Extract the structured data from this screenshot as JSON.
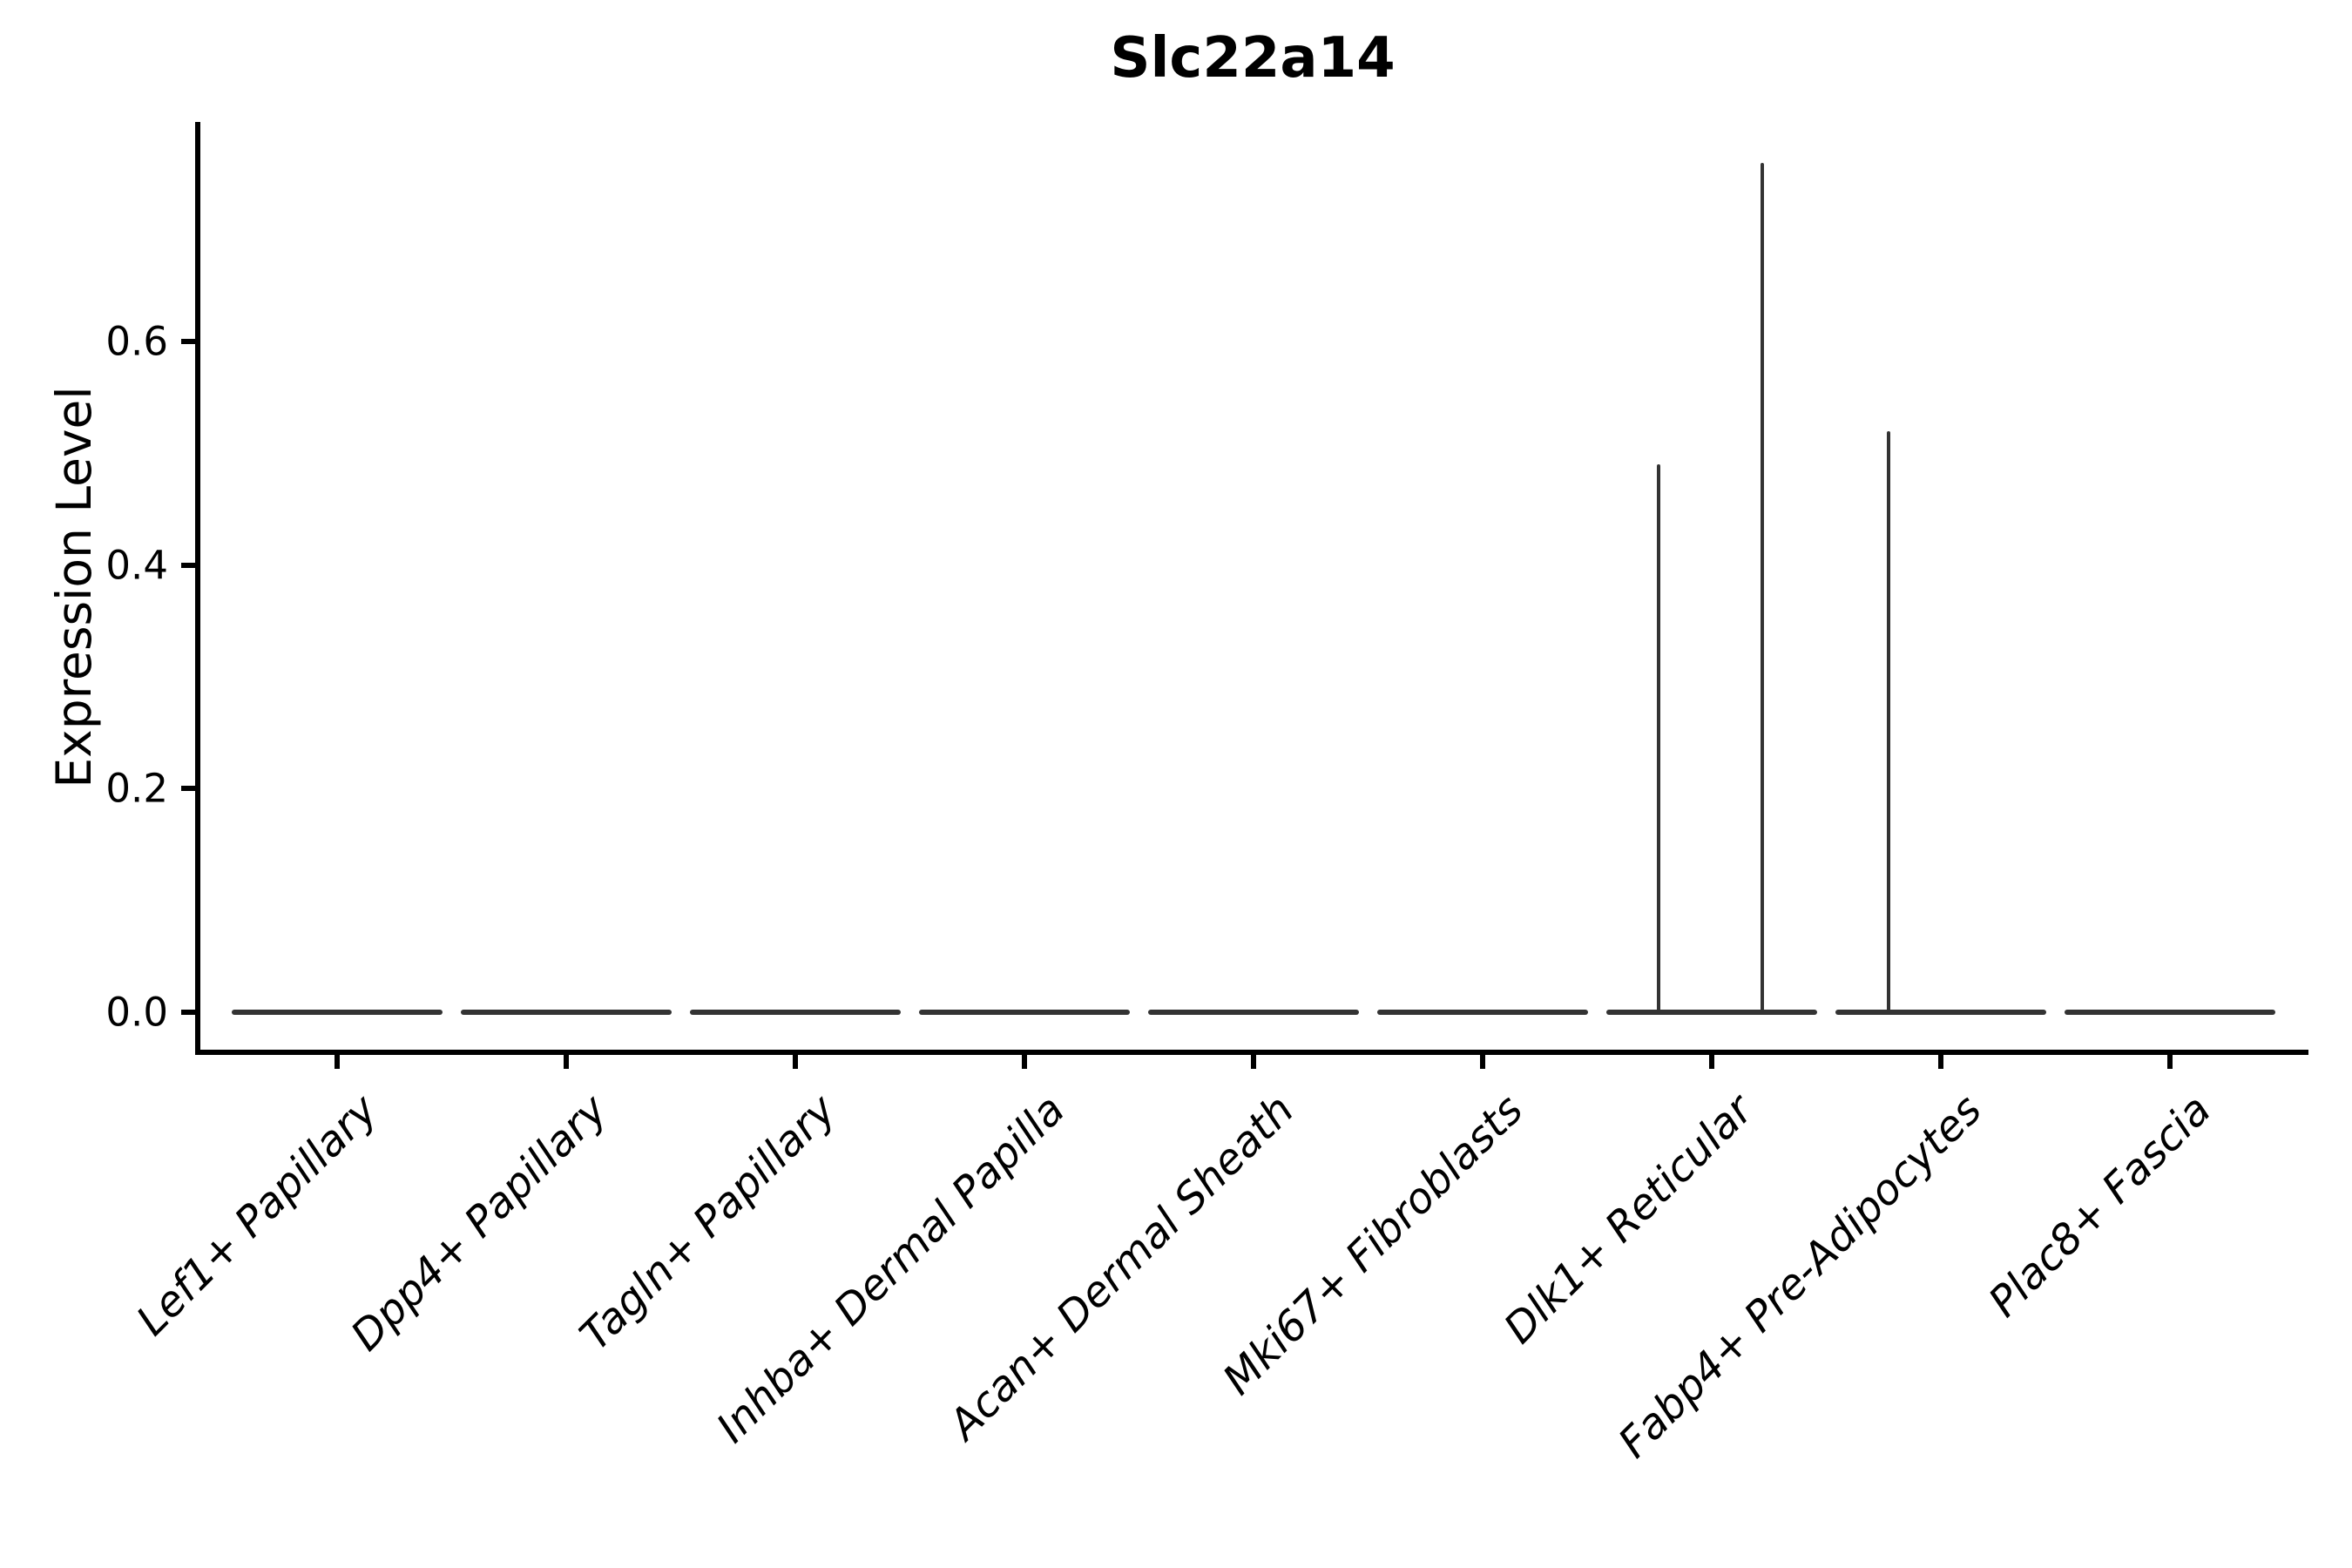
{
  "chart_data": {
    "type": "violin",
    "title": "Slc22a14",
    "ylabel": "Expression Level",
    "xlabel": "",
    "categories": [
      "Lef1+ Papillary",
      "Dpp4+ Papillary",
      "Tagln+ Papillary",
      "Inhba+ Dermal Papilla",
      "Acan+ Dermal Sheath",
      "Mki67+ Fibroblasts",
      "Dlk1+ Reticular",
      "Fabp4+ Pre-Adipocytes",
      "Plac8+ Fascia"
    ],
    "yticks": [
      {
        "value": 0.0,
        "label": "0.0"
      },
      {
        "value": 0.2,
        "label": "0.2"
      },
      {
        "value": 0.4,
        "label": "0.4"
      },
      {
        "value": 0.6,
        "label": "0.6"
      }
    ],
    "ylim": [
      -0.036,
      0.797
    ],
    "grid": false,
    "legend": null,
    "description": "Violin plot of Slc22a14 expression per fibroblast cluster; all distributions collapse to flat lines at 0 with thin density spikes in two clusters",
    "violins": [
      {
        "category": "Lef1+ Papillary",
        "baseline_value": 0.0,
        "spikes": []
      },
      {
        "category": "Dpp4+ Papillary",
        "baseline_value": 0.0,
        "spikes": []
      },
      {
        "category": "Tagln+ Papillary",
        "baseline_value": 0.0,
        "spikes": []
      },
      {
        "category": "Inhba+ Dermal Papilla",
        "baseline_value": 0.0,
        "spikes": []
      },
      {
        "category": "Acan+ Dermal Sheath",
        "baseline_value": 0.0,
        "spikes": []
      },
      {
        "category": "Mki67+ Fibroblasts",
        "baseline_value": 0.0,
        "spikes": []
      },
      {
        "category": "Dlk1+ Reticular",
        "baseline_value": 0.0,
        "spikes": [
          {
            "offset_frac": -0.232,
            "value": 0.49
          },
          {
            "offset_frac": 0.221,
            "value": 0.76
          }
        ]
      },
      {
        "category": "Fabp4+ Pre-Adipocytes",
        "baseline_value": 0.0,
        "spikes": [
          {
            "offset_frac": -0.228,
            "value": 0.52
          }
        ]
      },
      {
        "category": "Plac8+ Fascia",
        "baseline_value": 0.0,
        "spikes": []
      }
    ],
    "colors": {
      "axis": "#000000",
      "text": "#000000",
      "violin": "#333333",
      "background": "#ffffff"
    }
  }
}
